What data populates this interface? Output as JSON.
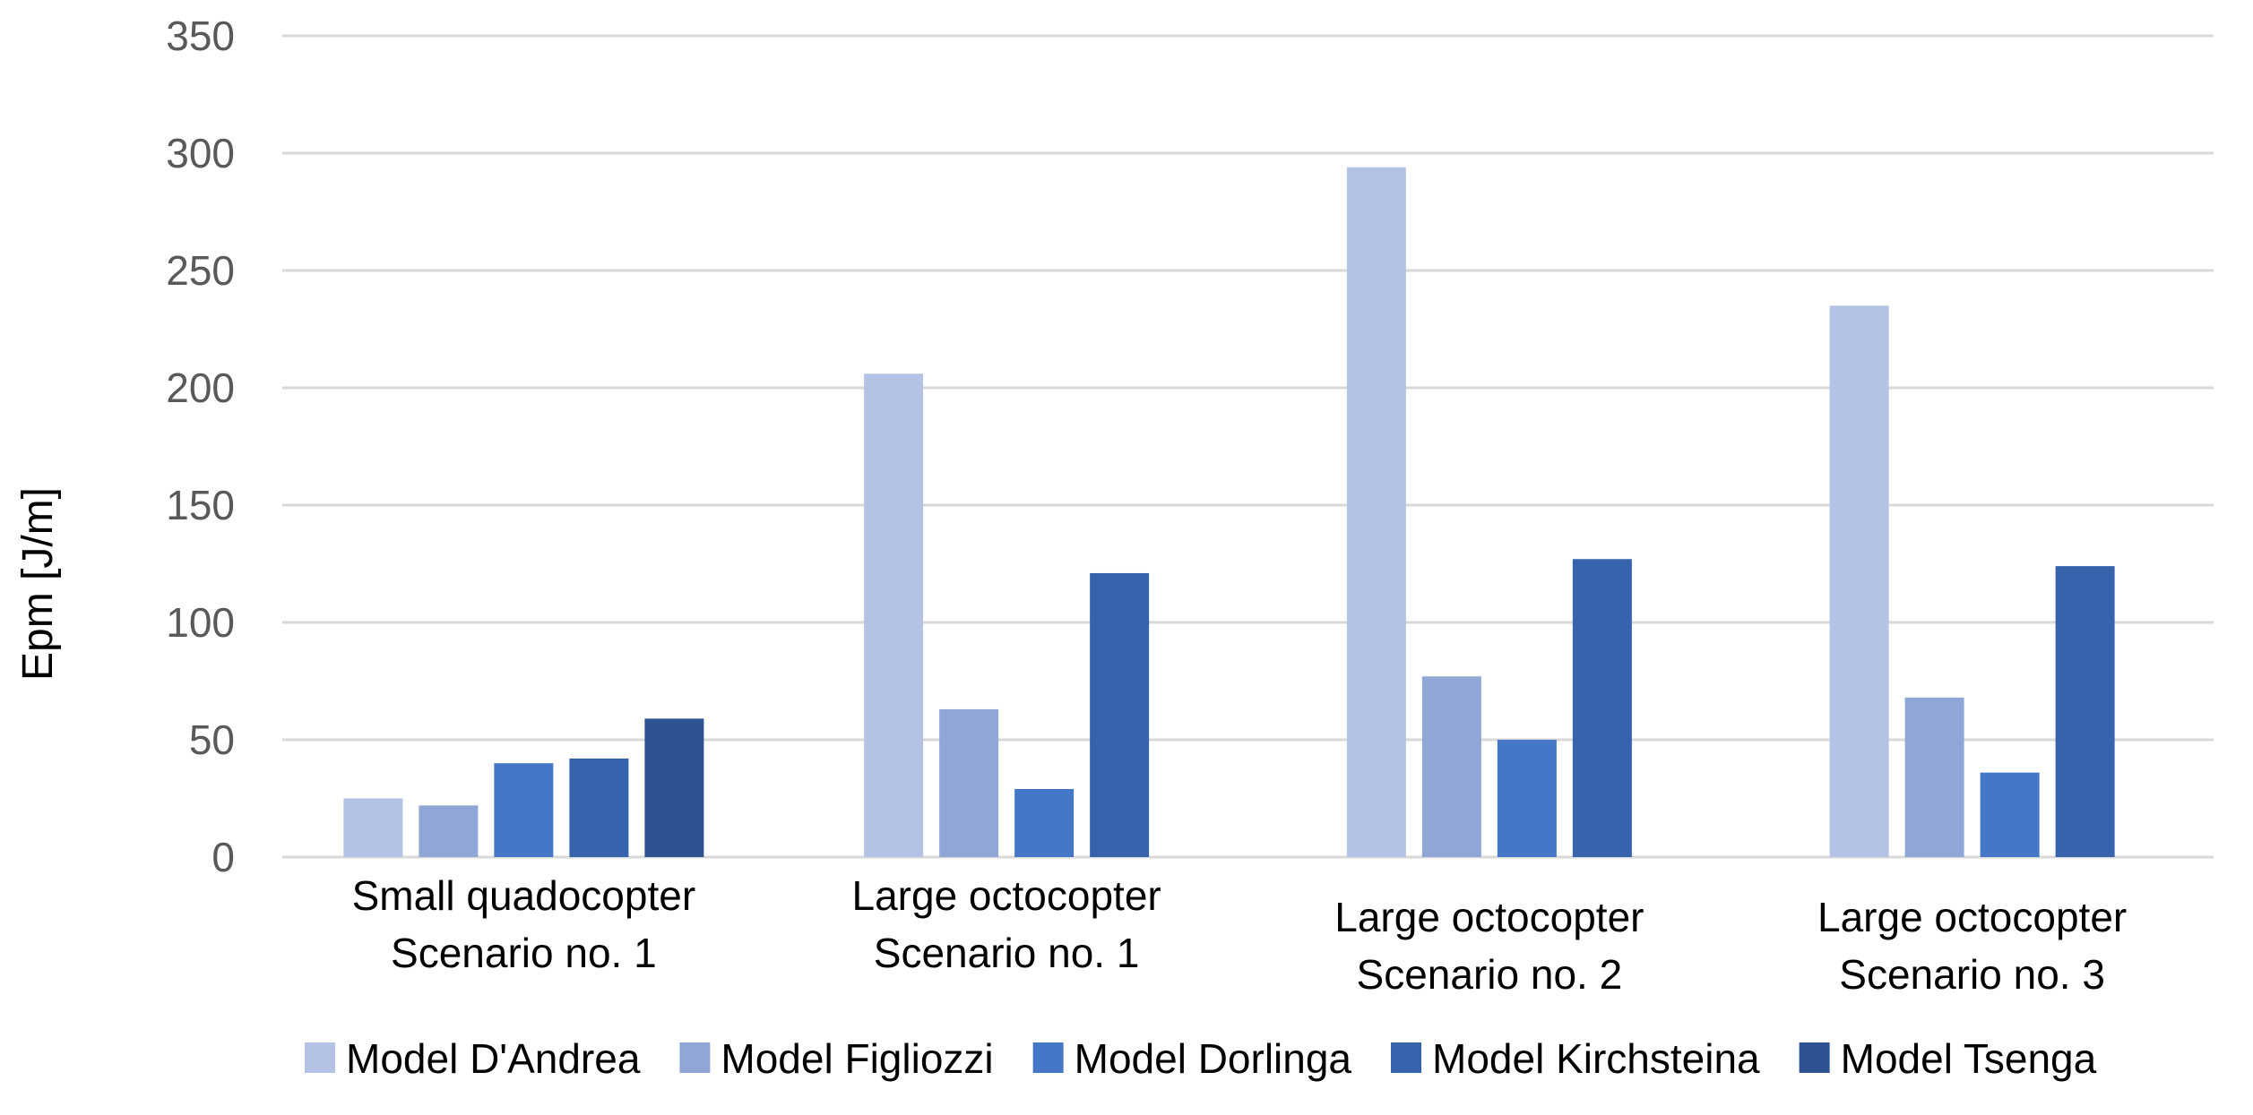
{
  "chart_data": {
    "type": "bar",
    "title": "",
    "xlabel": "",
    "ylabel": "Epm [J/m]",
    "ylim": [
      0,
      350
    ],
    "yticks": [
      0,
      50,
      100,
      150,
      200,
      250,
      300,
      350
    ],
    "grid": true,
    "legend_position": "bottom",
    "categories": [
      [
        "Small quadocopter",
        "Scenario no. 1"
      ],
      [
        "Large octocopter",
        "Scenario no. 1"
      ],
      [
        "Large octocopter",
        "Scenario no. 2"
      ],
      [
        "Large octocopter",
        "Scenario no. 3"
      ]
    ],
    "series": [
      {
        "name": "Model D'Andrea",
        "color": "#b4c3e5",
        "values": [
          25,
          206,
          294,
          235
        ]
      },
      {
        "name": "Model Figliozzi",
        "color": "#8fa6d6",
        "values": [
          22,
          63,
          77,
          68
        ]
      },
      {
        "name": "Model Dorlinga",
        "color": "#4577c7",
        "values": [
          40,
          29,
          50,
          36
        ]
      },
      {
        "name": "Model Kirchsteina",
        "color": "#3763ad",
        "values": [
          42,
          121,
          127,
          124
        ]
      },
      {
        "name": "Model Tsenga",
        "color": "#2e5291",
        "values": [
          59,
          0,
          0,
          0
        ]
      }
    ]
  }
}
